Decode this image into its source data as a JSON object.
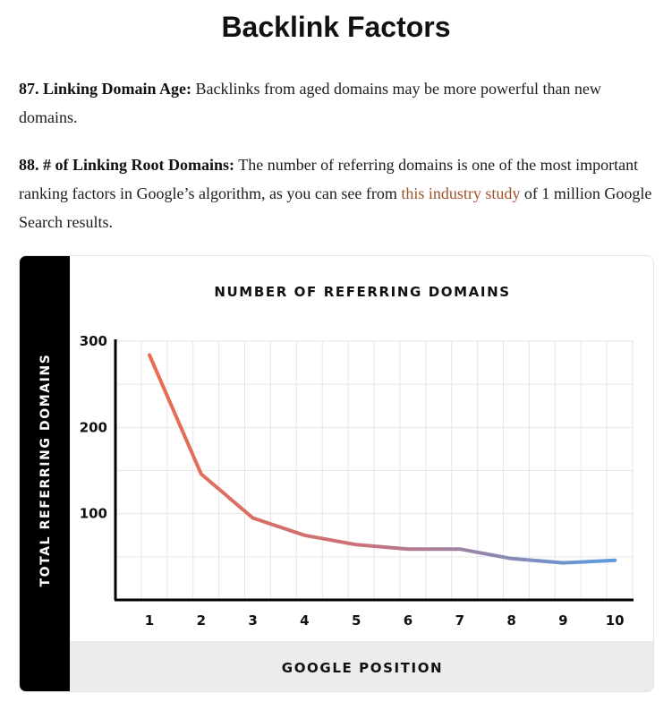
{
  "page": {
    "title": "Backlink Factors"
  },
  "factors": [
    {
      "label": "87. Linking Domain Age:",
      "text": " Backlinks from aged domains may be more powerful than new domains."
    },
    {
      "label": "88. # of Linking Root Domains:",
      "text_before": " The number of referring domains is one of the most important ranking factors in Google’s algorithm, as you can see from ",
      "link_text": "this industry study",
      "text_after": " of 1 million Google Search results."
    }
  ],
  "colors": {
    "line_start": "#e86c50",
    "line_end": "#5b9be0",
    "link": "#a0522d",
    "sidebar": "#000000",
    "footer_band": "#ececec"
  },
  "chart_data": {
    "type": "line",
    "title": "NUMBER OF REFERRING DOMAINS",
    "xlabel": "GOOGLE POSITION",
    "ylabel": "TOTAL REFERRING DOMAINS",
    "categories": [
      "1",
      "2",
      "3",
      "4",
      "5",
      "6",
      "7",
      "8",
      "9",
      "10"
    ],
    "x": [
      1,
      2,
      3,
      4,
      5,
      6,
      7,
      8,
      9,
      10
    ],
    "values": [
      284,
      146,
      95,
      75,
      64,
      59,
      59,
      48,
      43,
      46
    ],
    "y_ticks": [
      "100",
      "200",
      "300"
    ],
    "ylim": [
      0,
      300
    ],
    "grid": true,
    "legend": "none"
  }
}
